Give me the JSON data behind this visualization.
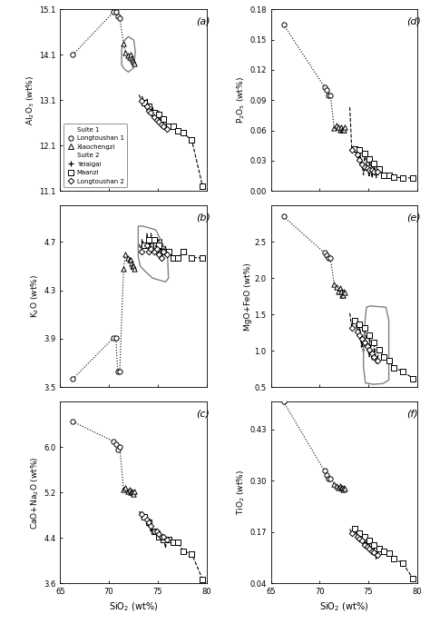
{
  "suite1_longtoushan1_sio2": [
    66.3,
    70.5,
    70.7,
    70.9,
    71.1
  ],
  "suite1_longtoushan1_al2o3": [
    14.1,
    15.05,
    15.05,
    14.95,
    14.9
  ],
  "suite1_longtoushan1_k2o": [
    3.57,
    3.91,
    3.91,
    3.63,
    3.63
  ],
  "suite1_longtoushan1_cao_na2o": [
    6.45,
    6.1,
    6.05,
    5.95,
    6.0
  ],
  "suite1_longtoushan1_p2o5": [
    0.165,
    0.103,
    0.1,
    0.095,
    0.095
  ],
  "suite1_longtoushan1_mgo_feo": [
    2.85,
    2.35,
    2.32,
    2.28,
    2.28
  ],
  "suite1_longtoushan1_tio2": [
    0.5,
    0.325,
    0.315,
    0.305,
    0.305
  ],
  "suite1_xiaochengzi_sio2": [
    71.5,
    71.7,
    71.9,
    72.1,
    72.2,
    72.3,
    72.4,
    72.5,
    72.6
  ],
  "suite1_xiaochengzi_al2o3": [
    14.35,
    14.15,
    14.08,
    14.05,
    14.1,
    14.02,
    13.98,
    13.95,
    13.9
  ],
  "suite1_xiaochengzi_k2o": [
    4.48,
    4.6,
    4.57,
    4.55,
    4.55,
    4.52,
    4.5,
    4.5,
    4.48
  ],
  "suite1_xiaochengzi_cao_na2o": [
    5.25,
    5.28,
    5.22,
    5.25,
    5.2,
    5.22,
    5.2,
    5.18,
    5.22
  ],
  "suite1_xiaochengzi_p2o5": [
    0.062,
    0.065,
    0.063,
    0.061,
    0.063,
    0.061,
    0.061,
    0.061,
    0.063
  ],
  "suite1_xiaochengzi_mgo_feo": [
    1.92,
    1.88,
    1.82,
    1.87,
    1.82,
    1.77,
    1.77,
    1.82,
    1.8
  ],
  "suite1_xiaochengzi_tio2": [
    0.292,
    0.287,
    0.282,
    0.287,
    0.282,
    0.282,
    0.277,
    0.282,
    0.28
  ],
  "suite2_yelaigai_sio2": [
    73.1,
    73.4,
    73.9,
    74.3,
    74.5,
    75.1,
    75.4,
    75.8
  ],
  "suite2_yelaigai_al2o3": [
    13.22,
    13.18,
    13.12,
    13.02,
    12.92,
    12.87,
    12.82,
    12.73
  ],
  "suite2_yelaigai_k2o": [
    4.68,
    4.72,
    4.77,
    4.77,
    4.72,
    4.72,
    4.72,
    4.67
  ],
  "suite2_yelaigai_cao_na2o": [
    4.87,
    4.72,
    4.67,
    4.52,
    4.47,
    4.37,
    4.32,
    4.22
  ],
  "suite2_yelaigai_p2o5": [
    0.083,
    0.042,
    0.033,
    0.031,
    0.016,
    0.014,
    0.013,
    0.013
  ],
  "suite2_yelaigai_mgo_feo": [
    1.52,
    1.45,
    1.35,
    1.05,
    0.97,
    0.92,
    0.87,
    0.82
  ],
  "suite2_yelaigai_tio2": [
    0.178,
    0.163,
    0.158,
    0.152,
    0.147,
    0.133,
    0.122,
    0.102
  ],
  "suite2_maanzi_sio2": [
    73.6,
    74.1,
    74.6,
    75.1,
    75.6,
    76.1,
    76.6,
    77.1,
    77.6,
    78.5,
    79.6
  ],
  "suite2_maanzi_al2o3": [
    13.05,
    12.97,
    12.82,
    12.78,
    12.68,
    12.53,
    12.53,
    12.43,
    12.38,
    12.22,
    11.2
  ],
  "suite2_maanzi_k2o": [
    4.67,
    4.72,
    4.72,
    4.67,
    4.62,
    4.62,
    4.57,
    4.57,
    4.62,
    4.57,
    4.57
  ],
  "suite2_maanzi_cao_na2o": [
    4.77,
    4.67,
    4.52,
    4.42,
    4.37,
    4.37,
    4.32,
    4.32,
    4.17,
    4.12,
    3.67
  ],
  "suite2_maanzi_p2o5": [
    0.042,
    0.041,
    0.037,
    0.032,
    0.027,
    0.022,
    0.016,
    0.016,
    0.014,
    0.013,
    0.013
  ],
  "suite2_maanzi_mgo_feo": [
    1.42,
    1.37,
    1.32,
    1.22,
    1.12,
    1.02,
    0.92,
    0.87,
    0.77,
    0.72,
    0.62
  ],
  "suite2_maanzi_tio2": [
    0.178,
    0.168,
    0.158,
    0.148,
    0.138,
    0.128,
    0.122,
    0.117,
    0.102,
    0.092,
    0.052
  ],
  "suite2_longtoushan2_sio2": [
    73.3,
    73.9,
    74.1,
    74.3,
    74.6,
    74.9,
    75.1,
    75.4,
    75.6,
    75.9
  ],
  "suite2_longtoushan2_al2o3": [
    13.08,
    12.97,
    12.87,
    12.82,
    12.72,
    12.67,
    12.62,
    12.57,
    12.52,
    12.47
  ],
  "suite2_longtoushan2_k2o": [
    4.62,
    4.67,
    4.62,
    4.64,
    4.62,
    4.64,
    4.6,
    4.57,
    4.62,
    4.6
  ],
  "suite2_longtoushan2_cao_na2o": [
    4.82,
    4.72,
    4.67,
    4.62,
    4.52,
    4.52,
    4.47,
    4.42,
    4.42,
    4.37
  ],
  "suite2_longtoushan2_p2o5": [
    0.041,
    0.036,
    0.031,
    0.026,
    0.024,
    0.023,
    0.021,
    0.021,
    0.019,
    0.019
  ],
  "suite2_longtoushan2_mgo_feo": [
    1.32,
    1.27,
    1.22,
    1.17,
    1.12,
    1.07,
    1.02,
    0.97,
    0.92,
    0.87
  ],
  "suite2_longtoushan2_tio2": [
    0.168,
    0.158,
    0.153,
    0.148,
    0.138,
    0.133,
    0.128,
    0.122,
    0.118,
    0.113
  ],
  "xlabel": "SiO$_2$ (wt%)",
  "xlim": [
    65,
    80
  ],
  "xticks": [
    65,
    70,
    75,
    80
  ],
  "panel_a_ylabel": "Al$_2$O$_3$ (wt%)",
  "panel_a_ylim": [
    11.1,
    15.1
  ],
  "panel_a_yticks": [
    11.1,
    12.1,
    13.1,
    14.1,
    15.1
  ],
  "panel_b_ylabel": "K$_2$O (wt%)",
  "panel_b_ylim": [
    3.5,
    5.0
  ],
  "panel_b_yticks": [
    3.5,
    3.9,
    4.3,
    4.7
  ],
  "panel_c_ylabel": "CaO+Na$_2$O (wt%)",
  "panel_c_ylim": [
    3.6,
    6.8
  ],
  "panel_c_yticks": [
    3.6,
    4.4,
    5.2,
    6.0
  ],
  "panel_d_ylabel": "P$_2$O$_5$ (wt%)",
  "panel_d_ylim": [
    0.0,
    0.18
  ],
  "panel_d_yticks": [
    0.0,
    0.03,
    0.06,
    0.09,
    0.12,
    0.15,
    0.18
  ],
  "panel_e_ylabel": "MgO+FeO (wt%)",
  "panel_e_ylim": [
    0.5,
    3.0
  ],
  "panel_e_yticks": [
    0.5,
    1.0,
    1.5,
    2.0,
    2.5
  ],
  "panel_f_ylabel": "TiO$_2$ (wt%)",
  "panel_f_ylim": [
    0.04,
    0.5
  ],
  "panel_f_yticks": [
    0.04,
    0.17,
    0.3,
    0.43
  ]
}
